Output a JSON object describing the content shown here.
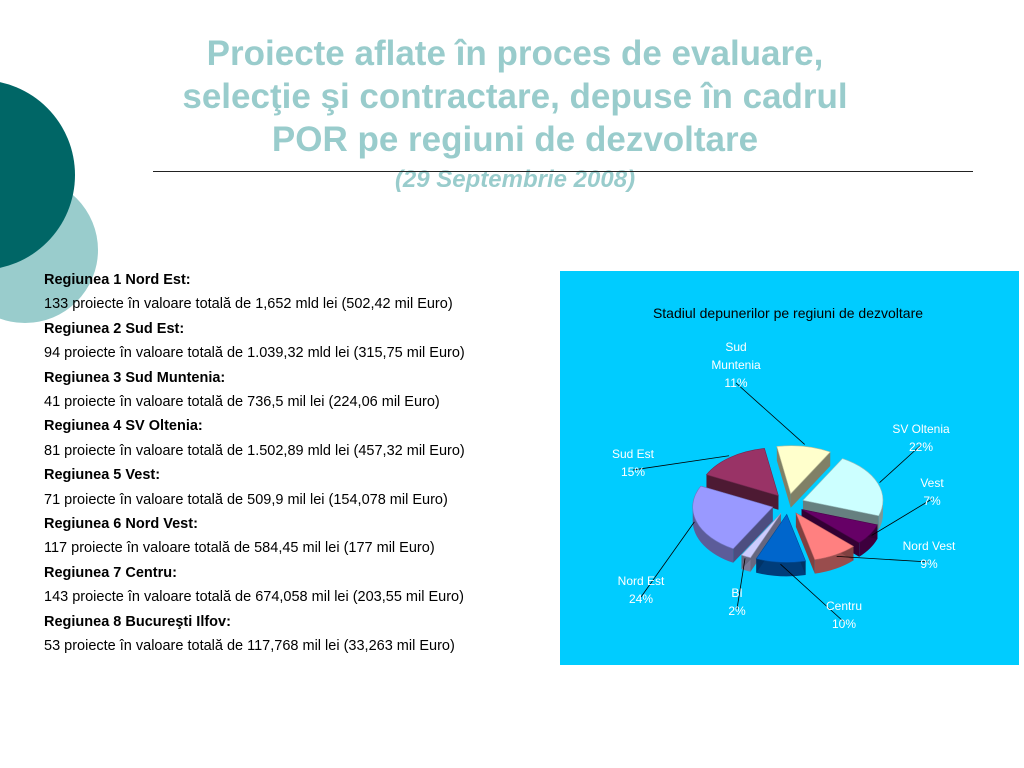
{
  "header": {
    "title_lines": [
      "Proiecte aflate în proces de evaluare,",
      "selecţie şi contractare, depuse în cadrul",
      "POR pe regiuni de dezvoltare"
    ],
    "subtitle": "(29 Septembrie 2008)"
  },
  "regions": [
    {
      "name": "Regiunea 1 Nord Est:",
      "detail": "133 proiecte în valoare totală de 1,652 mld lei (502,42 mil Euro)"
    },
    {
      "name": "Regiunea 2 Sud Est:",
      "detail": "94 proiecte în valoare totală de 1.039,32 mld lei (315,75 mil Euro)"
    },
    {
      "name": "Regiunea 3 Sud Muntenia:",
      "detail": "41 proiecte în valoare totală de 736,5 mil lei (224,06 mil Euro)"
    },
    {
      "name": "Regiunea 4 SV Oltenia:",
      "detail": "81 proiecte în valoare totală de 1.502,89 mld lei (457,32 mil Euro)"
    },
    {
      "name": "Regiunea 5 Vest:",
      "detail": "71 proiecte în valoare totală de 509,9 mil lei (154,078 mil Euro)"
    },
    {
      "name": "Regiunea 6 Nord Vest:",
      "detail": "117 proiecte în valoare totală de 584,45 mil lei (177 mil Euro)"
    },
    {
      "name": "Regiunea 7 Centru:",
      "detail": "143 proiecte în valoare totală de 674,058 mil lei (203,55 mil Euro)"
    },
    {
      "name": "Regiunea 8 Bucureşti Ilfov:",
      "detail": "53 proiecte în valoare totală de 117,768 mil lei (33,263 mil Euro)"
    }
  ],
  "chart_data": {
    "type": "pie",
    "title": "Stadiul depunerilor pe regiuni de dezvoltare",
    "legend": "none",
    "slices": [
      {
        "name": "Sud Muntenia",
        "label_lines": [
          "Sud",
          "Muntenia"
        ],
        "value": 11,
        "value_label": "11%",
        "color": "#ffffcc"
      },
      {
        "name": "SV Oltenia",
        "label_lines": [
          "SV Oltenia"
        ],
        "value": 22,
        "value_label": "22%",
        "color": "#ccffff"
      },
      {
        "name": "Vest",
        "label_lines": [
          "Vest"
        ],
        "value": 7,
        "value_label": "7%",
        "color": "#660066"
      },
      {
        "name": "Nord Vest",
        "label_lines": [
          "Nord Vest"
        ],
        "value": 9,
        "value_label": "9%",
        "color": "#ff8080"
      },
      {
        "name": "Centru",
        "label_lines": [
          "Centru"
        ],
        "value": 10,
        "value_label": "10%",
        "color": "#0066cc"
      },
      {
        "name": "BI",
        "label_lines": [
          "BI"
        ],
        "value": 2,
        "value_label": "2%",
        "color": "#ccccff"
      },
      {
        "name": "Nord Est",
        "label_lines": [
          "Nord Est"
        ],
        "value": 24,
        "value_label": "24%",
        "color": "#9999ff"
      },
      {
        "name": "Sud Est",
        "label_lines": [
          "Sud Est"
        ],
        "value": 15,
        "value_label": "15%",
        "color": "#993366"
      }
    ]
  },
  "colors": {
    "title": "#99cccc",
    "chart_background": "#00ccff",
    "chart_label": "#ffffff",
    "deco_dark": "#006666",
    "deco_light": "#99cccc"
  }
}
